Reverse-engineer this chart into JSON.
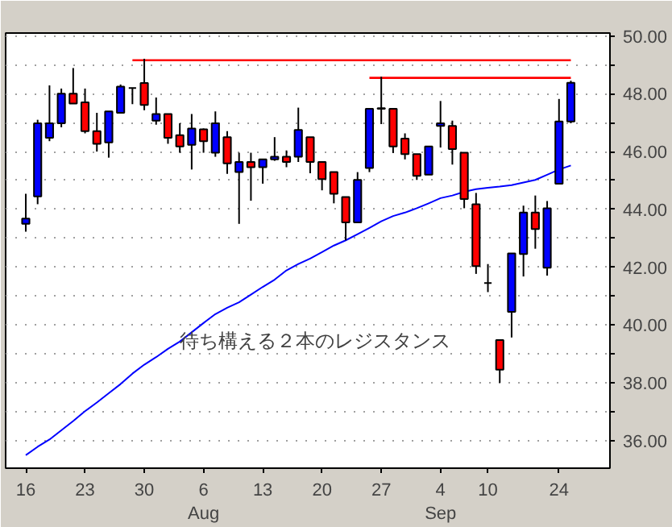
{
  "chart_data": {
    "type": "candlestick",
    "categories": [
      "16",
      null,
      null,
      null,
      null,
      "23",
      null,
      null,
      null,
      null,
      "30",
      null,
      null,
      null,
      null,
      "6\nAug",
      null,
      null,
      null,
      null,
      "13",
      null,
      null,
      null,
      null,
      "20",
      null,
      null,
      null,
      null,
      "27",
      null,
      null,
      null,
      null,
      "4\nSep",
      null,
      null,
      null,
      "10",
      null,
      null,
      null,
      null,
      null,
      "24",
      null
    ],
    "ohlc": [
      [
        43.5,
        44.54,
        43.23,
        43.68
      ],
      [
        44.45,
        47.1,
        44.18,
        46.98
      ],
      [
        46.48,
        48.29,
        46.36,
        46.98
      ],
      [
        46.98,
        48.18,
        46.84,
        48.0
      ],
      [
        48.0,
        48.89,
        47.66,
        47.66
      ],
      [
        47.7,
        48.18,
        46.63,
        46.71
      ],
      [
        46.71,
        47.34,
        46.0,
        46.27
      ],
      [
        46.32,
        47.39,
        45.79,
        47.39
      ],
      [
        47.34,
        48.32,
        47.34,
        48.25
      ],
      [
        48.2,
        48.21,
        47.64,
        48.2
      ],
      [
        48.37,
        49.21,
        47.43,
        47.61
      ],
      [
        47.07,
        47.87,
        46.93,
        47.3
      ],
      [
        47.3,
        47.3,
        46.27,
        46.48
      ],
      [
        46.57,
        46.98,
        45.96,
        46.18
      ],
      [
        46.23,
        47.3,
        45.38,
        46.8
      ],
      [
        46.77,
        46.8,
        45.96,
        46.36
      ],
      [
        45.96,
        47.39,
        45.82,
        46.98
      ],
      [
        46.5,
        46.71,
        45.23,
        45.59
      ],
      [
        45.29,
        45.96,
        43.5,
        45.64
      ],
      [
        45.64,
        45.96,
        44.3,
        45.46
      ],
      [
        45.46,
        45.73,
        44.89,
        45.73
      ],
      [
        45.73,
        46.5,
        45.68,
        45.82
      ],
      [
        45.82,
        46.04,
        45.46,
        45.64
      ],
      [
        45.82,
        47.52,
        45.64,
        46.75
      ],
      [
        46.5,
        46.5,
        45.25,
        45.64
      ],
      [
        45.64,
        45.64,
        44.66,
        45.05
      ],
      [
        45.29,
        45.29,
        44.21,
        44.54
      ],
      [
        44.43,
        44.43,
        42.93,
        43.55
      ],
      [
        43.55,
        45.29,
        43.55,
        45.02
      ],
      [
        45.43,
        47.48,
        45.29,
        47.48
      ],
      [
        47.5,
        48.59,
        46.95,
        47.48
      ],
      [
        47.48,
        47.48,
        45.95,
        46.18
      ],
      [
        46.45,
        46.63,
        45.73,
        45.91
      ],
      [
        45.91,
        45.91,
        45.02,
        45.16
      ],
      [
        45.2,
        46.18,
        45.2,
        46.18
      ],
      [
        46.89,
        47.75,
        46.14,
        46.98
      ],
      [
        46.89,
        47.07,
        45.55,
        46.09
      ],
      [
        45.96,
        45.96,
        44.04,
        44.36
      ],
      [
        44.18,
        44.57,
        41.77,
        42.04
      ],
      [
        41.45,
        42.11,
        41.14,
        41.45
      ],
      [
        39.48,
        39.48,
        38.0,
        38.46
      ],
      [
        40.46,
        42.48,
        39.57,
        42.48
      ],
      [
        42.46,
        44.13,
        41.68,
        43.89
      ],
      [
        43.89,
        44.48,
        42.64,
        43.32
      ],
      [
        41.98,
        44.29,
        41.71,
        44.04
      ],
      [
        44.89,
        47.82,
        44.89,
        47.04
      ],
      [
        47.04,
        48.45,
        46.98,
        48.38
      ]
    ],
    "colors": [
      "#0000ff",
      "#0000ff",
      "#0000ff",
      "#0000ff",
      "#ff0000",
      "#ff0000",
      "#ff0000",
      "#0000ff",
      "#0000ff",
      "#000000",
      "#ff0000",
      "#0000ff",
      "#ff0000",
      "#ff0000",
      "#0000ff",
      "#ff0000",
      "#0000ff",
      "#ff0000",
      "#0000ff",
      "#ff0000",
      "#0000ff",
      "#0000ff",
      "#ff0000",
      "#0000ff",
      "#ff0000",
      "#ff0000",
      "#ff0000",
      "#ff0000",
      "#0000ff",
      "#0000ff",
      "#000000",
      "#ff0000",
      "#ff0000",
      "#ff0000",
      "#0000ff",
      "#0000ff",
      "#ff0000",
      "#ff0000",
      "#ff0000",
      "#000000",
      "#ff0000",
      "#0000ff",
      "#0000ff",
      "#ff0000",
      "#0000ff",
      "#0000ff",
      "#0000ff"
    ],
    "series": [
      {
        "type": "line",
        "color": "#0000ff",
        "values": [
          35.5,
          35.79,
          36.04,
          36.36,
          36.68,
          37.02,
          37.32,
          37.64,
          37.96,
          38.32,
          38.63,
          38.89,
          39.18,
          39.43,
          39.75,
          40.07,
          40.38,
          40.6,
          40.79,
          41.05,
          41.32,
          41.57,
          41.89,
          42.11,
          42.3,
          42.52,
          42.75,
          42.93,
          43.14,
          43.36,
          43.59,
          43.77,
          43.89,
          44.04,
          44.21,
          44.39,
          44.48,
          44.61,
          44.7,
          44.75,
          44.79,
          44.84,
          44.93,
          45.02,
          45.2,
          45.38,
          45.52
        ]
      },
      {
        "type": "line",
        "color": "#ff0000",
        "values": [
          null,
          null,
          null,
          null,
          null,
          null,
          null,
          null,
          null,
          49.16,
          49.16,
          49.16,
          49.16,
          49.16,
          49.16,
          49.16,
          49.16,
          49.16,
          49.16,
          49.16,
          49.16,
          49.16,
          49.16,
          49.16,
          49.16,
          49.16,
          49.16,
          49.16,
          49.16,
          49.16,
          49.16,
          49.16,
          49.16,
          49.16,
          49.16,
          49.16,
          49.16,
          49.16,
          49.16,
          49.16,
          49.16,
          49.16,
          49.16,
          49.16,
          49.16,
          49.16,
          49.16
        ]
      },
      {
        "type": "line",
        "color": "#ff0000",
        "values": [
          null,
          null,
          null,
          null,
          null,
          null,
          null,
          null,
          null,
          null,
          null,
          null,
          null,
          null,
          null,
          null,
          null,
          null,
          null,
          null,
          null,
          null,
          null,
          null,
          null,
          null,
          null,
          null,
          null,
          48.55,
          48.55,
          48.55,
          48.55,
          48.55,
          48.55,
          48.55,
          48.55,
          48.55,
          48.55,
          48.55,
          48.55,
          48.55,
          48.55,
          48.55,
          48.55,
          48.55,
          48.55
        ]
      }
    ],
    "ylim": [
      35.05,
      50.1
    ],
    "yticks": [
      {
        "value": 36,
        "label": "36.00"
      },
      {
        "value": 37,
        "label": null
      },
      {
        "value": 38,
        "label": "38.00"
      },
      {
        "value": 39,
        "label": null
      },
      {
        "value": 40,
        "label": "40.00"
      },
      {
        "value": 41,
        "label": null
      },
      {
        "value": 42,
        "label": "42.00"
      },
      {
        "value": 43,
        "label": null
      },
      {
        "value": 44,
        "label": "44.00"
      },
      {
        "value": 45,
        "label": null
      },
      {
        "value": 46,
        "label": "46.00"
      },
      {
        "value": 47,
        "label": null
      },
      {
        "value": 48,
        "label": "48.00"
      },
      {
        "value": 49,
        "label": null
      },
      {
        "value": 50,
        "label": "50.00"
      }
    ],
    "grid": "y",
    "annotations": [
      "待ち構える２本のレジスタンス"
    ]
  }
}
